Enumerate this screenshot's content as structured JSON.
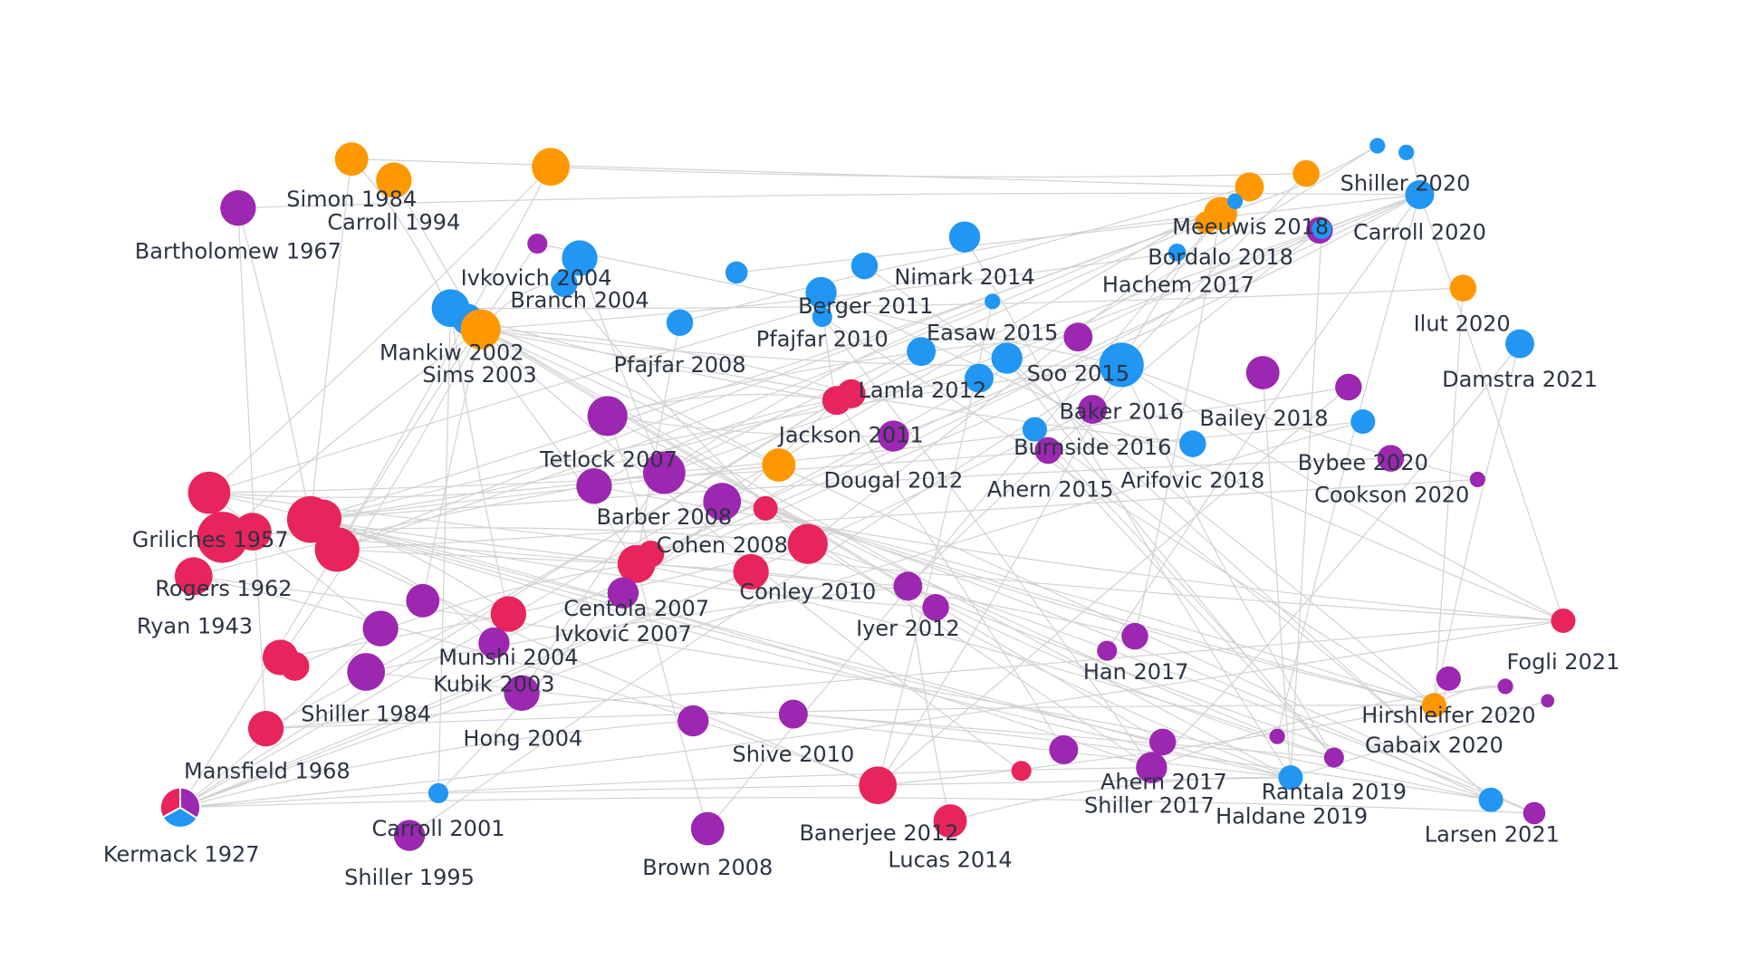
{
  "colors": {
    "pink": "#e8245c",
    "purple": "#9c27b0",
    "blue": "#2196f3",
    "orange": "#ff9800",
    "edge": "#d2d2d2",
    "label": "#2b3442"
  },
  "labels": [
    "Simon 1984",
    "Carroll 1994",
    "Bartholomew 1967",
    "Ivkovich 2004",
    "Branch 2004",
    "Mankiw 2002",
    "Sims 2003",
    "Pfajfar 2008",
    "Berger 2011",
    "Pfajfar 2010",
    "Nimark 2014",
    "Easaw 2015",
    "Soo 2015",
    "Lamla 2012",
    "Meeuwis 2018",
    "Bordalo 2018",
    "Hachem 2017",
    "Shiller 2020",
    "Carroll 2020",
    "Ilut 2020",
    "Damstra 2021",
    "Baker 2016",
    "Bailey 2018",
    "Burnside 2016",
    "Jackson 2011",
    "Tetlock 2007",
    "Dougal 2012",
    "Ahern 2015",
    "Arifovic 2018",
    "Bybee 2020",
    "Cookson 2020",
    "Griliches 1957",
    "Barber 2008",
    "Cohen 2008",
    "Rogers 1962",
    "Conley 2010",
    "Centola 2007",
    "Ivković 2007",
    "Ryan 1943",
    "Iyer 2012",
    "Munshi 2004",
    "Kubik 2003",
    "Fogli 2021",
    "Han 2017",
    "Shiller 1984",
    "Hirshleifer 2020",
    "Hong 2004",
    "Shive 2010",
    "Gabaix 2020",
    "Mansfield 1968",
    "Ahern 2017",
    "Rantala 2019",
    "Shiller 2017",
    "Haldane 2019",
    "Kermack 1927",
    "Carroll 2001",
    "Banerjee 2012",
    "Larsen 2021",
    "Lucas 2014",
    "Shiller 1995",
    "Brown 2008"
  ]
}
